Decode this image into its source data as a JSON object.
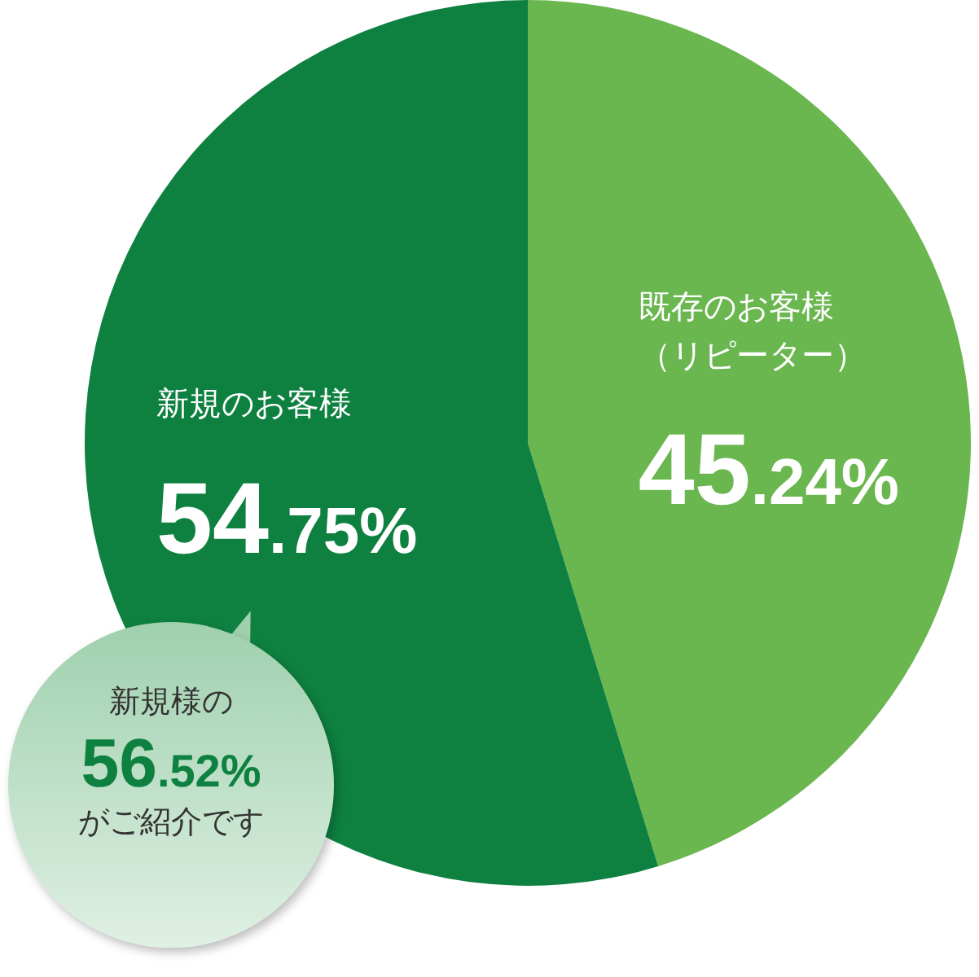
{
  "chart_data": {
    "type": "pie",
    "categories": [
      "既存のお客様（リピーター）",
      "新規のお客様"
    ],
    "values": [
      45.24,
      54.75
    ],
    "colors": [
      "#6ab64f",
      "#0e8140"
    ],
    "value_labels": [
      "45.24%",
      "54.75%"
    ],
    "legend": false,
    "annotations": [
      "新規様の\n56.52%\nがご紹介です"
    ]
  }
}
